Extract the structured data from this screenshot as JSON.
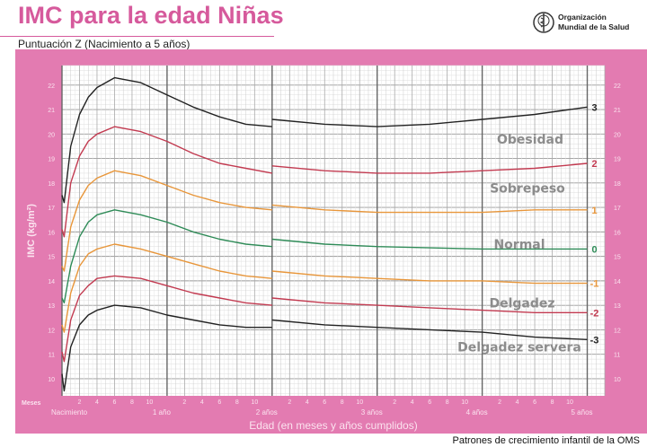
{
  "header": {
    "title": "IMC para la edad Niñas",
    "subtitle": "Puntuación Z (Nacimiento a 5 años)",
    "org_line1": "Organización",
    "org_line2": "Mundial de la Salud",
    "logo_icon": "who-emblem-icon"
  },
  "footer": "Patrones de crecimiento infantil de la OMS",
  "colors": {
    "panel": "#e37bb1",
    "title": "#d65a9c",
    "z3": "#222222",
    "z2": "#c23a50",
    "z1": "#e8963a",
    "z0": "#2e8b57",
    "zone_label": "#8c8c8c"
  },
  "chart_data": {
    "type": "line",
    "title": "IMC para la edad Niñas",
    "subtitle": "Puntuación Z (Nacimiento a 5 años)",
    "xlabel": "Edad (en meses y años cumplidos)",
    "ylabel": "IMC (kg/m²)",
    "x_unit_label": "Meses",
    "xlim": [
      0,
      62
    ],
    "ylim": [
      9.3,
      22.8
    ],
    "grid": true,
    "y_ticks": [
      10,
      11,
      12,
      13,
      14,
      15,
      16,
      17,
      18,
      19,
      20,
      21,
      22
    ],
    "month_ticks": [
      "2",
      "4",
      "6",
      "8",
      "10"
    ],
    "year_labels": [
      "Nacimiento",
      "1 año",
      "2 años",
      "3 años",
      "4 años",
      "5 años"
    ],
    "zone_labels": [
      "Obesidad",
      "Sobrepeso",
      "Normal",
      "Delgadez",
      "Delgadez servera"
    ],
    "x_left": [
      0,
      0.25,
      1,
      2,
      3,
      4,
      6,
      9,
      12,
      15,
      18,
      21,
      24
    ],
    "x_right": [
      24,
      30,
      36,
      42,
      48,
      54,
      60
    ],
    "series": [
      {
        "name": "3",
        "color": "#222222",
        "left": [
          17.5,
          17.2,
          19.5,
          20.8,
          21.5,
          21.9,
          22.3,
          22.1,
          21.6,
          21.1,
          20.7,
          20.4,
          20.3
        ],
        "right": [
          20.6,
          20.4,
          20.3,
          20.4,
          20.6,
          20.8,
          21.1
        ]
      },
      {
        "name": "2",
        "color": "#c23a50",
        "left": [
          16.1,
          15.8,
          18.0,
          19.1,
          19.7,
          20.0,
          20.3,
          20.1,
          19.7,
          19.2,
          18.8,
          18.6,
          18.4
        ],
        "right": [
          18.7,
          18.5,
          18.4,
          18.4,
          18.5,
          18.6,
          18.8
        ]
      },
      {
        "name": "1",
        "color": "#e8963a",
        "left": [
          14.6,
          14.4,
          16.2,
          17.3,
          17.9,
          18.2,
          18.5,
          18.3,
          17.9,
          17.5,
          17.2,
          17.0,
          16.9
        ],
        "right": [
          17.1,
          16.9,
          16.8,
          16.8,
          16.8,
          16.9,
          16.9
        ]
      },
      {
        "name": "0",
        "color": "#2e8b57",
        "left": [
          13.3,
          13.1,
          14.6,
          15.8,
          16.4,
          16.7,
          16.9,
          16.7,
          16.4,
          16.0,
          15.7,
          15.5,
          15.4
        ],
        "right": [
          15.7,
          15.5,
          15.4,
          15.35,
          15.3,
          15.3,
          15.3
        ]
      },
      {
        "name": "-1",
        "color": "#e8963a",
        "left": [
          12.2,
          11.9,
          13.5,
          14.6,
          15.1,
          15.3,
          15.5,
          15.3,
          15.0,
          14.7,
          14.4,
          14.2,
          14.1
        ],
        "right": [
          14.4,
          14.2,
          14.1,
          14.0,
          14.0,
          13.9,
          13.9
        ]
      },
      {
        "name": "-2",
        "color": "#c23a50",
        "left": [
          11.1,
          10.7,
          12.4,
          13.4,
          13.8,
          14.1,
          14.2,
          14.1,
          13.8,
          13.5,
          13.3,
          13.1,
          13.0
        ],
        "right": [
          13.3,
          13.1,
          13.0,
          12.9,
          12.8,
          12.7,
          12.7
        ]
      },
      {
        "name": "-3",
        "color": "#222222",
        "left": [
          10.2,
          9.5,
          11.3,
          12.2,
          12.6,
          12.8,
          13.0,
          12.9,
          12.6,
          12.4,
          12.2,
          12.1,
          12.1
        ],
        "right": [
          12.4,
          12.2,
          12.1,
          12.0,
          11.9,
          11.7,
          11.6
        ]
      }
    ]
  }
}
